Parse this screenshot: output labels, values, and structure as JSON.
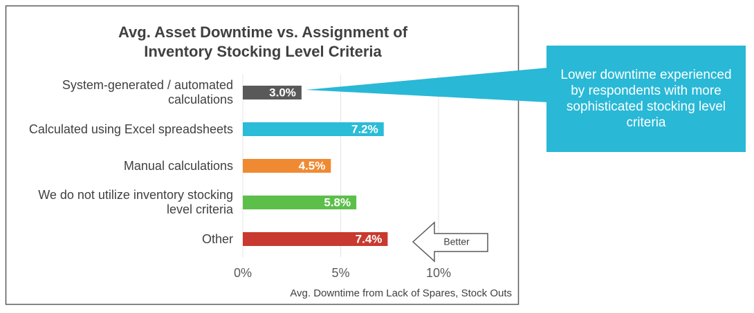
{
  "chart_data": {
    "type": "bar",
    "orientation": "horizontal",
    "title": "Avg. Asset Downtime vs. Assignment of Inventory Stocking Level Criteria",
    "categories": [
      "System-generated / automated calculations",
      "Calculated using Excel spreadsheets",
      "Manual calculations",
      "We do not utilize inventory stocking level criteria",
      "Other"
    ],
    "values": [
      3.0,
      7.2,
      4.5,
      5.8,
      7.4
    ],
    "value_labels": [
      "3.0%",
      "7.2%",
      "4.5%",
      "5.8%",
      "7.4%"
    ],
    "colors": [
      "#595959",
      "#2bbcd8",
      "#ef8a33",
      "#5cbf4a",
      "#c8392f"
    ],
    "xlim": [
      0,
      10
    ],
    "xticks": [
      {
        "value": 0,
        "label": "0%"
      },
      {
        "value": 5,
        "label": "5%"
      },
      {
        "value": 10,
        "label": "10%"
      }
    ],
    "xlabel": "Avg. Downtime from Lack of Spares, Stock Outs",
    "grid": true,
    "annotations": [
      "Lower downtime experienced by respondents with more sophisticated stocking level criteria",
      "Better"
    ],
    "callout_color": "#29b8d6"
  }
}
